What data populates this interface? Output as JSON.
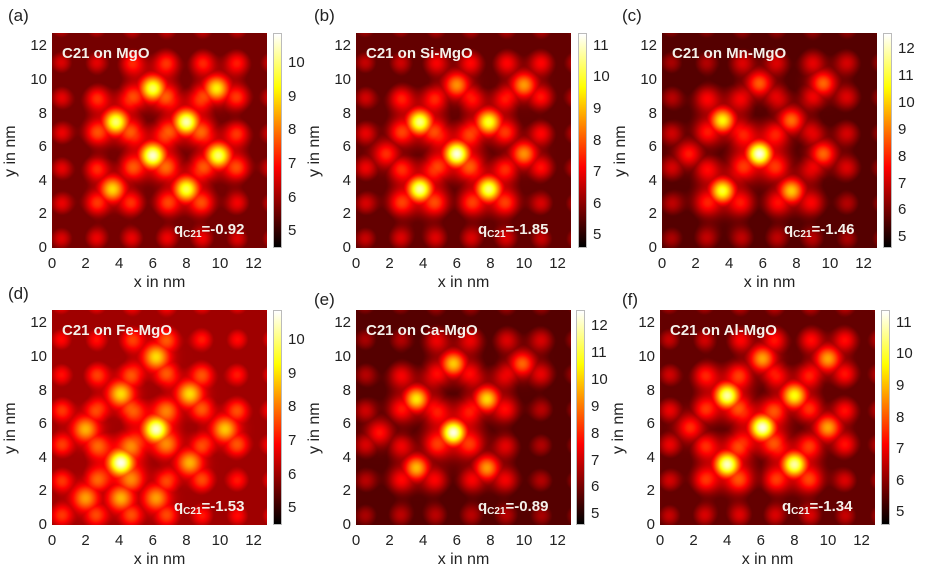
{
  "chart_data": [
    {
      "type": "heatmap",
      "panel_label": "(a)",
      "title": "C21 on MgO",
      "annotation": {
        "q_symbol": "q",
        "q_sub": "C21",
        "q_value": "=-0.92"
      },
      "xlabel": "x in nm",
      "ylabel": "y in nm",
      "xlim": [
        0,
        12.8
      ],
      "ylim": [
        0,
        12.8
      ],
      "xticks": [
        0,
        2,
        4,
        6,
        8,
        10,
        12
      ],
      "yticks": [
        0,
        2,
        4,
        6,
        8,
        10,
        12
      ],
      "colorbar": {
        "range": [
          4.5,
          10.9
        ],
        "ticks": [
          5,
          6,
          7,
          8,
          9,
          10
        ],
        "colormap": "hot"
      },
      "background_level": 5.6,
      "bright_spots": [
        {
          "x": 6.0,
          "y": 9.5,
          "value": 9.9
        },
        {
          "x": 9.8,
          "y": 9.5,
          "value": 9.2
        },
        {
          "x": 3.8,
          "y": 7.5,
          "value": 10.0
        },
        {
          "x": 8.0,
          "y": 7.5,
          "value": 10.4
        },
        {
          "x": 6.0,
          "y": 5.5,
          "value": 10.6
        },
        {
          "x": 9.9,
          "y": 5.5,
          "value": 10.0
        },
        {
          "x": 3.6,
          "y": 3.5,
          "value": 9.0
        },
        {
          "x": 8.0,
          "y": 3.5,
          "value": 9.8
        }
      ]
    },
    {
      "type": "heatmap",
      "panel_label": "(b)",
      "title": "C21 on Si-MgO",
      "annotation": {
        "q_symbol": "q",
        "q_sub": "C21",
        "q_value": "=-1.85"
      },
      "xlabel": "x in nm",
      "ylabel": "y in nm",
      "xlim": [
        0,
        12.8
      ],
      "ylim": [
        0,
        12.8
      ],
      "xticks": [
        0,
        2,
        4,
        6,
        8,
        10,
        12
      ],
      "yticks": [
        0,
        2,
        4,
        6,
        8,
        10,
        12
      ],
      "colorbar": {
        "range": [
          4.6,
          11.4
        ],
        "ticks": [
          5,
          6,
          7,
          8,
          9,
          10,
          11
        ],
        "colormap": "hot"
      },
      "background_level": 5.6,
      "bright_spots": [
        {
          "x": 6.0,
          "y": 9.7,
          "value": 8.6
        },
        {
          "x": 10.0,
          "y": 9.7,
          "value": 8.7
        },
        {
          "x": 3.8,
          "y": 7.5,
          "value": 10.6
        },
        {
          "x": 7.9,
          "y": 7.5,
          "value": 10.0
        },
        {
          "x": 6.0,
          "y": 5.6,
          "value": 11.2
        },
        {
          "x": 10.0,
          "y": 5.6,
          "value": 8.6
        },
        {
          "x": 3.8,
          "y": 3.5,
          "value": 10.8
        },
        {
          "x": 7.9,
          "y": 3.5,
          "value": 10.5
        },
        {
          "x": 1.8,
          "y": 5.6,
          "value": 7.6
        }
      ]
    },
    {
      "type": "heatmap",
      "panel_label": "(c)",
      "title": "C21 on Mn-MgO",
      "annotation": {
        "q_symbol": "q",
        "q_sub": "C21",
        "q_value": "=-1.46"
      },
      "xlabel": "x in nm",
      "ylabel": "y in nm",
      "xlim": [
        0,
        12.8
      ],
      "ylim": [
        0,
        12.8
      ],
      "xticks": [
        0,
        2,
        4,
        6,
        8,
        10,
        12
      ],
      "yticks": [
        0,
        2,
        4,
        6,
        8,
        10,
        12
      ],
      "colorbar": {
        "range": [
          4.6,
          12.6
        ],
        "ticks": [
          5,
          6,
          7,
          8,
          9,
          10,
          11,
          12
        ],
        "colormap": "hot"
      },
      "background_level": 5.6,
      "bright_spots": [
        {
          "x": 5.8,
          "y": 9.8,
          "value": 8.7
        },
        {
          "x": 9.6,
          "y": 9.8,
          "value": 8.8
        },
        {
          "x": 3.6,
          "y": 7.6,
          "value": 10.6
        },
        {
          "x": 7.7,
          "y": 7.6,
          "value": 8.9
        },
        {
          "x": 5.8,
          "y": 5.6,
          "value": 12.4
        },
        {
          "x": 9.6,
          "y": 5.6,
          "value": 8.8
        },
        {
          "x": 3.6,
          "y": 3.4,
          "value": 11.0
        },
        {
          "x": 7.7,
          "y": 3.4,
          "value": 10.0
        },
        {
          "x": 1.6,
          "y": 5.6,
          "value": 7.9
        }
      ]
    },
    {
      "type": "heatmap",
      "panel_label": "(d)",
      "title": "C21 on Fe-MgO",
      "annotation": {
        "q_symbol": "q",
        "q_sub": "C21",
        "q_value": "=-1.53"
      },
      "xlabel": "x in nm",
      "ylabel": "y in nm",
      "xlim": [
        0,
        12.8
      ],
      "ylim": [
        0,
        12.8
      ],
      "xticks": [
        0,
        2,
        4,
        6,
        8,
        10,
        12
      ],
      "yticks": [
        0,
        2,
        4,
        6,
        8,
        10,
        12
      ],
      "colorbar": {
        "range": [
          4.5,
          10.9
        ],
        "ticks": [
          5,
          6,
          7,
          8,
          9,
          10
        ],
        "colormap": "hot"
      },
      "background_level": 6.0,
      "bright_spots": [
        {
          "x": 6.2,
          "y": 10.0,
          "value": 9.0
        },
        {
          "x": 4.1,
          "y": 7.8,
          "value": 9.0
        },
        {
          "x": 8.2,
          "y": 7.8,
          "value": 9.0
        },
        {
          "x": 6.2,
          "y": 5.7,
          "value": 10.6
        },
        {
          "x": 2.0,
          "y": 5.7,
          "value": 8.6
        },
        {
          "x": 10.3,
          "y": 5.7,
          "value": 8.8
        },
        {
          "x": 4.1,
          "y": 3.7,
          "value": 10.8
        },
        {
          "x": 8.2,
          "y": 3.7,
          "value": 8.6
        },
        {
          "x": 2.0,
          "y": 1.6,
          "value": 8.4
        },
        {
          "x": 4.1,
          "y": 1.6,
          "value": 8.6
        },
        {
          "x": 6.2,
          "y": 1.6,
          "value": 8.4
        }
      ]
    },
    {
      "type": "heatmap",
      "panel_label": "(e)",
      "title": "C21 on Ca-MgO",
      "annotation": {
        "q_symbol": "q",
        "q_sub": "C21",
        "q_value": "=-0.89"
      },
      "xlabel": "x in nm",
      "ylabel": "y in nm",
      "xlim": [
        0,
        12.8
      ],
      "ylim": [
        0,
        12.8
      ],
      "xticks": [
        0,
        2,
        4,
        6,
        8,
        10,
        12
      ],
      "yticks": [
        0,
        2,
        4,
        6,
        8,
        10,
        12
      ],
      "colorbar": {
        "range": [
          4.6,
          12.6
        ],
        "ticks": [
          5,
          6,
          7,
          8,
          9,
          10,
          11,
          12
        ],
        "colormap": "hot"
      },
      "background_level": 5.6,
      "bright_spots": [
        {
          "x": 5.8,
          "y": 9.6,
          "value": 10.0
        },
        {
          "x": 9.9,
          "y": 9.6,
          "value": 8.8
        },
        {
          "x": 3.6,
          "y": 7.5,
          "value": 10.4
        },
        {
          "x": 7.8,
          "y": 7.5,
          "value": 10.2
        },
        {
          "x": 5.8,
          "y": 5.5,
          "value": 12.4
        },
        {
          "x": 1.4,
          "y": 5.5,
          "value": 7.8
        },
        {
          "x": 3.6,
          "y": 3.4,
          "value": 9.8
        },
        {
          "x": 7.8,
          "y": 3.4,
          "value": 9.4
        }
      ]
    },
    {
      "type": "heatmap",
      "panel_label": "(f)",
      "title": "C21 on Al-MgO",
      "annotation": {
        "q_symbol": "q",
        "q_sub": "C21",
        "q_value": "=-1.34"
      },
      "xlabel": "x in nm",
      "ylabel": "y in nm",
      "xlim": [
        0,
        12.8
      ],
      "ylim": [
        0,
        12.8
      ],
      "xticks": [
        0,
        2,
        4,
        6,
        8,
        10,
        12
      ],
      "yticks": [
        0,
        2,
        4,
        6,
        8,
        10,
        12
      ],
      "colorbar": {
        "range": [
          4.6,
          11.4
        ],
        "ticks": [
          5,
          6,
          7,
          8,
          9,
          10,
          11
        ],
        "colormap": "hot"
      },
      "background_level": 5.6,
      "bright_spots": [
        {
          "x": 6.1,
          "y": 9.9,
          "value": 8.8
        },
        {
          "x": 10.0,
          "y": 9.9,
          "value": 8.8
        },
        {
          "x": 4.0,
          "y": 7.7,
          "value": 10.8
        },
        {
          "x": 8.0,
          "y": 7.7,
          "value": 9.8
        },
        {
          "x": 6.1,
          "y": 5.8,
          "value": 11.2
        },
        {
          "x": 10.0,
          "y": 5.8,
          "value": 8.8
        },
        {
          "x": 1.8,
          "y": 5.8,
          "value": 7.6
        },
        {
          "x": 4.0,
          "y": 3.6,
          "value": 11.0
        },
        {
          "x": 8.0,
          "y": 3.6,
          "value": 10.8
        }
      ]
    }
  ]
}
